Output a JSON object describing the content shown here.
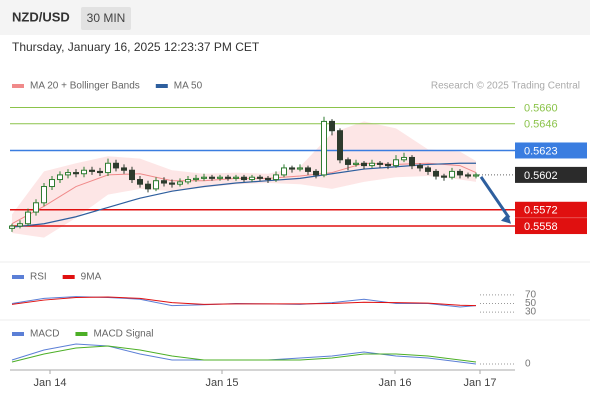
{
  "header": {
    "symbol": "NZD/USD",
    "interval": "30 MIN",
    "timestamp": "Thursday, January 16, 2025 12:23:37 PM CET"
  },
  "chart_data": [
    {
      "type": "candlestick",
      "credit": "Research © 2025 Trading Central",
      "up_color": "#2f7d32",
      "down_color": "#2d3b2d",
      "candles": [
        [
          0.5556,
          0.556,
          0.5553,
          0.5558
        ],
        [
          0.5558,
          0.5563,
          0.5556,
          0.556
        ],
        [
          0.556,
          0.5573,
          0.5558,
          0.557
        ],
        [
          0.557,
          0.5581,
          0.5567,
          0.5578
        ],
        [
          0.5578,
          0.5595,
          0.5575,
          0.5592
        ],
        [
          0.5592,
          0.5601,
          0.5589,
          0.5598
        ],
        [
          0.5598,
          0.5605,
          0.5595,
          0.5602
        ],
        [
          0.5602,
          0.5607,
          0.5599,
          0.5604
        ],
        [
          0.5604,
          0.5607,
          0.56,
          0.5603
        ],
        [
          0.5603,
          0.5609,
          0.56,
          0.5606
        ],
        [
          0.5606,
          0.5609,
          0.5602,
          0.5605
        ],
        [
          0.5605,
          0.5608,
          0.5601,
          0.5604
        ],
        [
          0.5604,
          0.5616,
          0.5601,
          0.5612
        ],
        [
          0.5612,
          0.5615,
          0.5605,
          0.5608
        ],
        [
          0.5608,
          0.5611,
          0.5603,
          0.5606
        ],
        [
          0.5606,
          0.5609,
          0.5595,
          0.5598
        ],
        [
          0.5598,
          0.5601,
          0.5591,
          0.5594
        ],
        [
          0.5594,
          0.5597,
          0.5587,
          0.559
        ],
        [
          0.559,
          0.56,
          0.5588,
          0.5597
        ],
        [
          0.5597,
          0.56,
          0.5592,
          0.5595
        ],
        [
          0.5595,
          0.5598,
          0.5591,
          0.5594
        ],
        [
          0.5594,
          0.5599,
          0.5592,
          0.5596
        ],
        [
          0.5596,
          0.5601,
          0.5594,
          0.5598
        ],
        [
          0.5598,
          0.5602,
          0.5596,
          0.5599
        ],
        [
          0.5599,
          0.5603,
          0.5597,
          0.56
        ],
        [
          0.56,
          0.5602,
          0.5597,
          0.5599
        ],
        [
          0.5599,
          0.5602,
          0.5597,
          0.56
        ],
        [
          0.56,
          0.5602,
          0.5597,
          0.5599
        ],
        [
          0.5599,
          0.5602,
          0.5597,
          0.56
        ],
        [
          0.56,
          0.5602,
          0.5596,
          0.5598
        ],
        [
          0.5598,
          0.5602,
          0.5596,
          0.56
        ],
        [
          0.56,
          0.5602,
          0.5597,
          0.5599
        ],
        [
          0.5599,
          0.5601,
          0.5595,
          0.5598
        ],
        [
          0.5598,
          0.5605,
          0.5596,
          0.5602
        ],
        [
          0.5602,
          0.5611,
          0.56,
          0.5608
        ],
        [
          0.5608,
          0.561,
          0.5604,
          0.5607
        ],
        [
          0.5607,
          0.5611,
          0.5605,
          0.5608
        ],
        [
          0.5608,
          0.561,
          0.5602,
          0.5605
        ],
        [
          0.5605,
          0.5607,
          0.5599,
          0.5602
        ],
        [
          0.5602,
          0.5652,
          0.56,
          0.5648
        ],
        [
          0.5648,
          0.565,
          0.5636,
          0.564
        ],
        [
          0.564,
          0.5642,
          0.5612,
          0.5615
        ],
        [
          0.5615,
          0.5617,
          0.5606,
          0.5611
        ],
        [
          0.5611,
          0.5615,
          0.5609,
          0.5612
        ],
        [
          0.5612,
          0.5614,
          0.5607,
          0.561
        ],
        [
          0.561,
          0.5615,
          0.5608,
          0.5612
        ],
        [
          0.5612,
          0.5614,
          0.5608,
          0.5611
        ],
        [
          0.5611,
          0.5613,
          0.5607,
          0.561
        ],
        [
          0.561,
          0.5619,
          0.5608,
          0.5615
        ],
        [
          0.5615,
          0.5621,
          0.5613,
          0.5617
        ],
        [
          0.5617,
          0.5619,
          0.5607,
          0.561
        ],
        [
          0.561,
          0.5612,
          0.5605,
          0.5608
        ],
        [
          0.5608,
          0.561,
          0.5602,
          0.5605
        ],
        [
          0.5605,
          0.5607,
          0.5598,
          0.5601
        ],
        [
          0.5601,
          0.5603,
          0.5597,
          0.56
        ],
        [
          0.56,
          0.5608,
          0.5598,
          0.5605
        ],
        [
          0.5605,
          0.5607,
          0.5599,
          0.5602
        ],
        [
          0.5602,
          0.5604,
          0.5599,
          0.5601
        ],
        [
          0.5601,
          0.5604,
          0.5599,
          0.5602
        ]
      ],
      "x": [
        0,
        4,
        8,
        12,
        16,
        20,
        24,
        28,
        32,
        36,
        40,
        44,
        48,
        52,
        56,
        58
      ],
      "series": [
        {
          "name": "MA 20 + Bollinger Bands",
          "color": "#f08a8a",
          "band_color": "#fde0e0",
          "values": [
            0.556,
            0.5575,
            0.5592,
            0.5602,
            0.5603,
            0.5597,
            0.5597,
            0.5599,
            0.5599,
            0.5601,
            0.5604,
            0.5612,
            0.5611,
            0.5612,
            0.561,
            0.5604
          ],
          "upper": [
            0.5568,
            0.5605,
            0.5612,
            0.5618,
            0.5616,
            0.5606,
            0.5603,
            0.5604,
            0.5603,
            0.5609,
            0.5638,
            0.5648,
            0.5642,
            0.5624,
            0.5622,
            0.5614
          ],
          "lower": [
            0.5552,
            0.5548,
            0.5565,
            0.5585,
            0.559,
            0.5588,
            0.5591,
            0.5594,
            0.5595,
            0.5594,
            0.559,
            0.5596,
            0.56,
            0.5601,
            0.5598,
            0.5596
          ]
        },
        {
          "name": "MA 50",
          "color": "#2e5f9e",
          "values": [
            0.5557,
            0.556,
            0.5566,
            0.5574,
            0.5582,
            0.5588,
            0.5592,
            0.5595,
            0.5597,
            0.5599,
            0.5603,
            0.5607,
            0.5609,
            0.5611,
            0.5612,
            0.5612
          ]
        }
      ],
      "levels": [
        {
          "value": 0.566,
          "label": "0.5660",
          "color": "#8bc34a",
          "boxed": false
        },
        {
          "value": 0.5646,
          "label": "0.5646",
          "color": "#8bc34a",
          "boxed": false
        },
        {
          "value": 0.5623,
          "label": "0.5623",
          "color": "#3a7de0",
          "boxed": true
        },
        {
          "value": 0.5572,
          "label": "0.5572",
          "color": "#e01010",
          "boxed": true
        },
        {
          "value": 0.5558,
          "label": "0.5558",
          "color": "#e01010",
          "boxed": true
        }
      ],
      "last": {
        "value": 0.5602,
        "label": "0.5602",
        "color": "#2b2b2b"
      },
      "xlim": [
        -0.25,
        62.875
      ],
      "ylim": [
        0.5546,
        0.5669
      ]
    },
    {
      "type": "line",
      "x": [
        0,
        4,
        8,
        12,
        16,
        20,
        24,
        28,
        32,
        36,
        40,
        44,
        48,
        52,
        56,
        58
      ],
      "series": [
        {
          "name": "RSI",
          "color": "#5b7fd6",
          "values": [
            50,
            62,
            66,
            64,
            60,
            45,
            47,
            50,
            49,
            48,
            52,
            60,
            50,
            50,
            42,
            45
          ]
        },
        {
          "name": "9MA",
          "color": "#e01010",
          "values": [
            48,
            58,
            64,
            65,
            62,
            52,
            48,
            49,
            49,
            49,
            50,
            53,
            52,
            51,
            46,
            45
          ]
        }
      ],
      "xlim": [
        -0.25,
        62.875
      ],
      "ylim": [
        0,
        100
      ],
      "yticks": [
        70,
        50,
        30
      ]
    },
    {
      "type": "line",
      "x": [
        0,
        4,
        8,
        12,
        16,
        20,
        24,
        28,
        32,
        36,
        40,
        44,
        48,
        52,
        56,
        58
      ],
      "series": [
        {
          "name": "MACD",
          "color": "#5b7fd6",
          "values": [
            0.0002,
            0.0007,
            0.001,
            0.0009,
            0.0005,
            0.0002,
            0.0002,
            0.0002,
            0.0002,
            0.0003,
            0.0004,
            0.0006,
            0.0004,
            0.0003,
            0.0001,
            0.0
          ]
        },
        {
          "name": "MACD Signal",
          "color": "#4caf26",
          "values": [
            0.0001,
            0.0005,
            0.0008,
            0.0009,
            0.0007,
            0.0004,
            0.0002,
            0.0002,
            0.0002,
            0.0002,
            0.0003,
            0.0005,
            0.0005,
            0.0004,
            0.0002,
            0.0001
          ]
        }
      ],
      "xlim": [
        -0.25,
        62.875
      ],
      "ylim": [
        -0.0003,
        0.0012
      ],
      "yticks": [
        0
      ],
      "xticks": [
        {
          "value": 4.75,
          "label": "Jan 14"
        },
        {
          "value": 26.25,
          "label": "Jan 15"
        },
        {
          "value": 47.875,
          "label": "Jan 16"
        },
        {
          "value": 58.5,
          "label": "Jan 17"
        }
      ]
    }
  ]
}
